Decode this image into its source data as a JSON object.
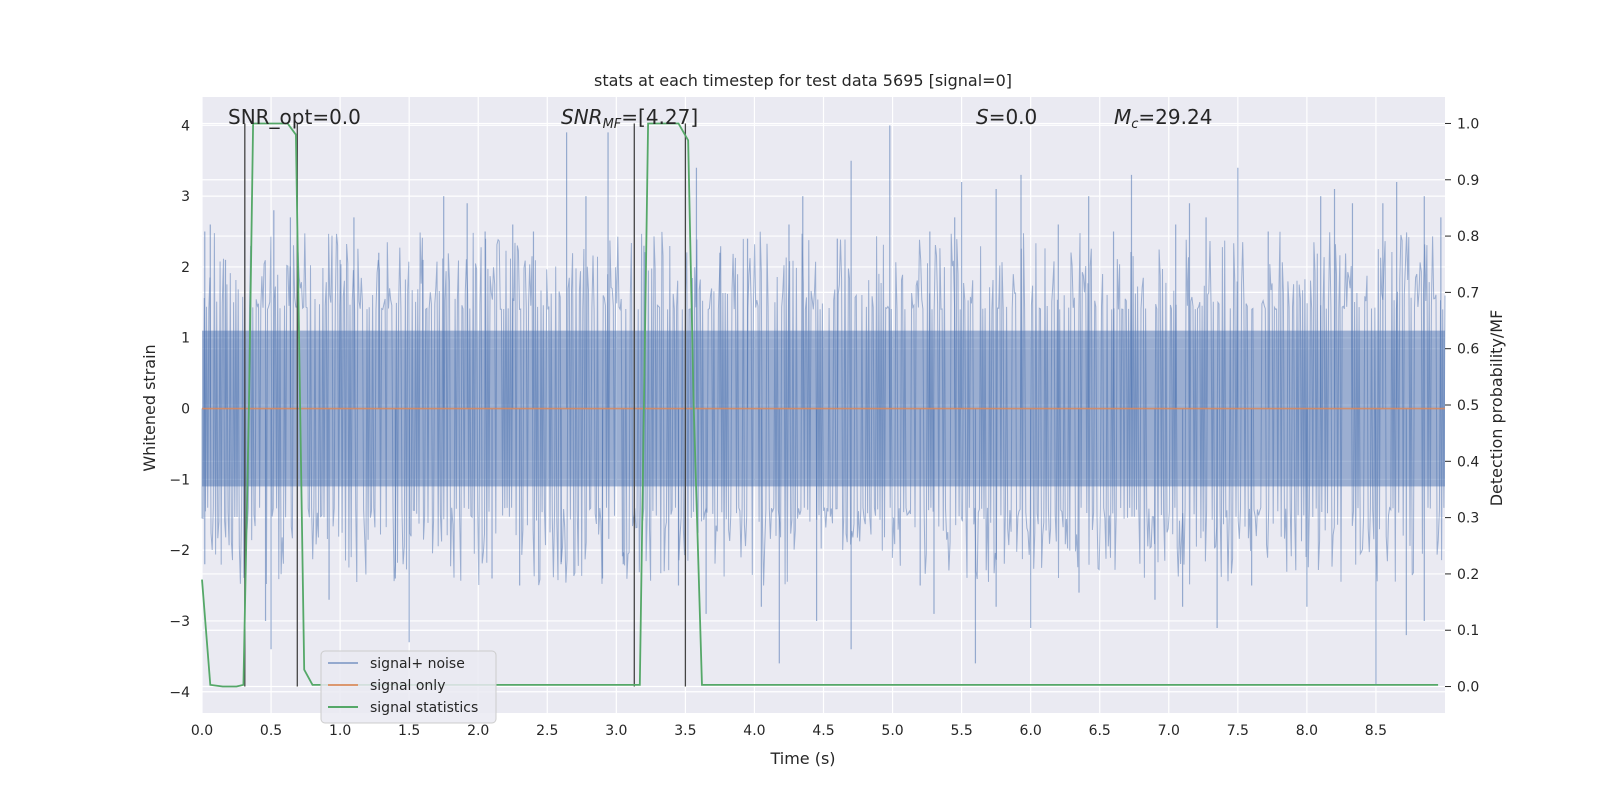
{
  "chart_data": {
    "type": "line",
    "title": "stats at each timestep for test data 5695 [signal=0]",
    "xlabel": "Time (s)",
    "ylabel": "Whitened strain",
    "ylabel_right": "Detection probability/MF",
    "xlim": [
      0.0,
      9.0
    ],
    "ylim": [
      -4.3,
      4.4
    ],
    "ylim_right": [
      -0.047,
      1.047
    ],
    "x_ticks": [
      0.0,
      0.5,
      1.0,
      1.5,
      2.0,
      2.5,
      3.0,
      3.5,
      4.0,
      4.5,
      5.0,
      5.5,
      6.0,
      6.5,
      7.0,
      7.5,
      8.0,
      8.5
    ],
    "x_tick_labels": [
      "0.0",
      "0.5",
      "1.0",
      "1.5",
      "2.0",
      "2.5",
      "3.0",
      "3.5",
      "4.0",
      "4.5",
      "5.0",
      "5.5",
      "6.0",
      "6.5",
      "7.0",
      "7.5",
      "8.0",
      "8.5"
    ],
    "y_ticks": [
      -4,
      -3,
      -2,
      -1,
      0,
      1,
      2,
      3,
      4
    ],
    "y_tick_labels": [
      "−4",
      "−3",
      "−2",
      "−1",
      "0",
      "1",
      "2",
      "3",
      "4"
    ],
    "y_ticks_right": [
      0.0,
      0.1,
      0.2,
      0.3,
      0.4,
      0.5,
      0.6,
      0.7,
      0.8,
      0.9,
      1.0
    ],
    "y_tick_labels_right": [
      "0.0",
      "0.1",
      "0.2",
      "0.3",
      "0.4",
      "0.5",
      "0.6",
      "0.7",
      "0.8",
      "0.9",
      "1.0"
    ],
    "grid": true,
    "legend_placement": "lower-left",
    "colors": {
      "noise": "#4c72b0",
      "signal": "#dd8452",
      "stats": "#55a868",
      "vlines": "#444444",
      "background": "#eaeaf2"
    },
    "series": [
      {
        "name": "signal+ noise",
        "kind": "noise-band",
        "dense_envelope": [
          -1.1,
          1.1
        ],
        "spikes_up": [
          [
            0.02,
            2.5
          ],
          [
            0.06,
            2.6
          ],
          [
            0.17,
            2.1
          ],
          [
            0.31,
            2.5
          ],
          [
            0.52,
            2.8
          ],
          [
            0.64,
            2.7
          ],
          [
            1.0,
            2.1
          ],
          [
            1.1,
            2.7
          ],
          [
            1.28,
            2.2
          ],
          [
            1.6,
            2.1
          ],
          [
            1.75,
            3.0
          ],
          [
            1.92,
            2.9
          ],
          [
            2.05,
            2.5
          ],
          [
            2.25,
            2.6
          ],
          [
            2.4,
            2.5
          ],
          [
            2.64,
            3.9
          ],
          [
            2.78,
            3.0
          ],
          [
            2.94,
            3.9
          ],
          [
            3.2,
            2.3
          ],
          [
            3.58,
            3.4
          ],
          [
            3.75,
            2.2
          ],
          [
            3.95,
            2.4
          ],
          [
            4.25,
            2.6
          ],
          [
            4.35,
            3.0
          ],
          [
            4.6,
            2.4
          ],
          [
            4.7,
            3.5
          ],
          [
            4.98,
            4.0
          ],
          [
            5.27,
            2.5
          ],
          [
            5.45,
            2.7
          ],
          [
            5.5,
            3.2
          ],
          [
            5.75,
            3.1
          ],
          [
            5.93,
            3.3
          ],
          [
            6.2,
            2.6
          ],
          [
            6.42,
            3.0
          ],
          [
            6.6,
            2.5
          ],
          [
            6.73,
            3.3
          ],
          [
            7.05,
            2.6
          ],
          [
            7.15,
            2.9
          ],
          [
            7.27,
            2.7
          ],
          [
            7.5,
            3.4
          ],
          [
            7.72,
            2.5
          ],
          [
            8.1,
            3.0
          ],
          [
            8.2,
            3.1
          ],
          [
            8.33,
            2.9
          ],
          [
            8.55,
            2.9
          ],
          [
            8.65,
            3.2
          ],
          [
            8.85,
            3.0
          ],
          [
            8.97,
            2.7
          ]
        ],
        "spikes_down": [
          [
            0.02,
            -2.2
          ],
          [
            0.46,
            -3.0
          ],
          [
            0.5,
            -3.4
          ],
          [
            0.92,
            -2.7
          ],
          [
            1.4,
            -2.4
          ],
          [
            1.5,
            -3.3
          ],
          [
            2.1,
            -2.4
          ],
          [
            2.3,
            -2.5
          ],
          [
            2.6,
            -2.2
          ],
          [
            2.9,
            -2.4
          ],
          [
            3.05,
            -2.2
          ],
          [
            3.45,
            -2.5
          ],
          [
            3.65,
            -2.9
          ],
          [
            4.05,
            -2.8
          ],
          [
            4.18,
            -3.6
          ],
          [
            4.45,
            -3.0
          ],
          [
            4.7,
            -3.4
          ],
          [
            5.2,
            -2.5
          ],
          [
            5.3,
            -2.9
          ],
          [
            5.6,
            -3.6
          ],
          [
            5.75,
            -2.8
          ],
          [
            6.0,
            -3.1
          ],
          [
            6.35,
            -2.6
          ],
          [
            6.9,
            -2.7
          ],
          [
            7.1,
            -2.8
          ],
          [
            7.35,
            -3.1
          ],
          [
            7.6,
            -2.5
          ],
          [
            8.0,
            -2.8
          ],
          [
            8.5,
            -3.9
          ],
          [
            8.72,
            -3.2
          ],
          [
            8.85,
            -3.0
          ]
        ]
      },
      {
        "name": "signal only",
        "kind": "line",
        "x": [
          0.0,
          9.0
        ],
        "y": [
          0.0,
          0.0
        ]
      },
      {
        "name": "signal statistics",
        "kind": "line",
        "axis": "right",
        "x": [
          0.0,
          0.06,
          0.15,
          0.25,
          0.3,
          0.34,
          0.37,
          0.5,
          0.62,
          0.68,
          0.74,
          0.8,
          1.0,
          2.0,
          3.0,
          3.1,
          3.17,
          3.23,
          3.35,
          3.45,
          3.52,
          3.56,
          3.62,
          4.0,
          5.0,
          6.0,
          7.0,
          8.0,
          8.95
        ],
        "y": [
          0.19,
          0.003,
          0.0,
          0.0,
          0.003,
          0.5,
          1.0,
          1.0,
          1.0,
          0.98,
          0.03,
          0.003,
          0.003,
          0.003,
          0.003,
          0.003,
          0.003,
          1.0,
          1.0,
          1.0,
          0.97,
          0.5,
          0.003,
          0.003,
          0.003,
          0.003,
          0.003,
          0.003,
          0.003
        ]
      }
    ],
    "vlines": [
      0.31,
      0.69,
      3.13,
      3.5
    ],
    "annotations": {
      "snr_opt": "SNR_opt=0.0",
      "snr_mf_base": "SNR",
      "snr_mf_sub": "MF",
      "snr_mf_value": "=[4.27]",
      "s_symbol": "S",
      "s_value": "=0.0",
      "mc_symbol": "M",
      "mc_sub": "c",
      "mc_value": "=29.24"
    }
  }
}
